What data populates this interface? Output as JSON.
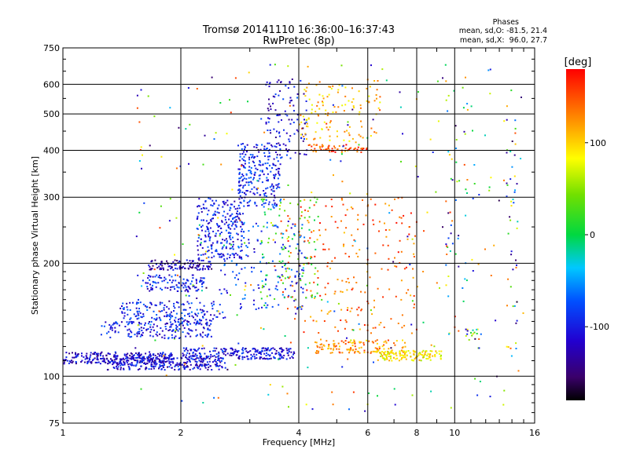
{
  "chart_data": {
    "type": "scatter",
    "title": "Tromsø 20141110 16:36:00–16:37:43",
    "subtitle": "RwPretec (8p)",
    "xlabel": "Frequency [MHz]",
    "ylabel": "Stationary phase Virtual Height [km]",
    "x_scale": "log",
    "y_scale": "log",
    "xlim": [
      1,
      16
    ],
    "ylim": [
      75,
      750
    ],
    "x_ticks": [
      1,
      2,
      4,
      6,
      8,
      10,
      16
    ],
    "x_tick_labels": [
      "1",
      "2",
      "4",
      "6",
      "8",
      "10",
      "16"
    ],
    "y_ticks": [
      75,
      100,
      200,
      300,
      400,
      500,
      600,
      750
    ],
    "y_tick_labels": [
      "75",
      "100",
      "200",
      "300",
      "400",
      "500",
      "600",
      "750"
    ],
    "grid": true,
    "stats": {
      "heading": "Phases",
      "line1": "mean, sd,O: -81.5, 21.4",
      "line2": "mean, sd,X:  96.0, 27.7"
    },
    "colorbar": {
      "label": "[deg]",
      "range": [
        -180,
        180
      ],
      "ticks": [
        100,
        0,
        -100
      ],
      "tick_labels": [
        "100",
        "0",
        "-100"
      ]
    },
    "series": [
      {
        "mode": "O",
        "color_value_center": -100,
        "clusters": [
          {
            "x": [
              1.0,
              1.9
            ],
            "y": [
              108,
              116
            ],
            "n": 260,
            "phase": -115
          },
          {
            "x": [
              1.3,
              2.6
            ],
            "y": [
              104,
              112
            ],
            "n": 260,
            "phase": -110
          },
          {
            "x": [
              2.0,
              3.9
            ],
            "y": [
              111,
              119
            ],
            "n": 240,
            "phase": -105
          },
          {
            "x": [
              1.25,
              2.4
            ],
            "y": [
              126,
              140
            ],
            "n": 180,
            "phase": -100
          },
          {
            "x": [
              1.4,
              2.6
            ],
            "y": [
              140,
              158
            ],
            "n": 160,
            "phase": -95
          },
          {
            "x": [
              1.6,
              2.3
            ],
            "y": [
              168,
              186
            ],
            "n": 110,
            "phase": -100
          },
          {
            "x": [
              1.65,
              2.4
            ],
            "y": [
              192,
              204
            ],
            "n": 110,
            "phase": -125
          },
          {
            "x": [
              2.2,
              2.9
            ],
            "y": [
              205,
              300
            ],
            "n": 230,
            "phase": -100
          },
          {
            "x": [
              2.8,
              3.6
            ],
            "y": [
              280,
              420
            ],
            "n": 240,
            "phase": -95
          },
          {
            "x": [
              3.3,
              4.2
            ],
            "y": [
              380,
              620
            ],
            "n": 110,
            "phase": -110
          },
          {
            "x": [
              2.5,
              4.2
            ],
            "y": [
              150,
              260
            ],
            "n": 160,
            "phase": -85
          }
        ]
      },
      {
        "mode": "X",
        "color_value_center": 96,
        "clusters": [
          {
            "x": [
              4.2,
              6.0
            ],
            "y": [
              395,
              415
            ],
            "n": 60,
            "phase": 150
          },
          {
            "x": [
              4.0,
              6.5
            ],
            "y": [
              420,
              620
            ],
            "n": 120,
            "phase": 110
          },
          {
            "x": [
              4.4,
              7.5
            ],
            "y": [
              115,
              125
            ],
            "n": 120,
            "phase": 125
          },
          {
            "x": [
              6.3,
              9.3
            ],
            "y": [
              110,
              117
            ],
            "n": 140,
            "phase": 90
          },
          {
            "x": [
              3.6,
              8.0
            ],
            "y": [
              130,
              300
            ],
            "n": 230,
            "phase": 140
          },
          {
            "x": [
              3.2,
              4.5
            ],
            "y": [
              160,
              300
            ],
            "n": 90,
            "phase": 20
          }
        ]
      },
      {
        "mode": "scattered",
        "clusters": [
          {
            "x": [
              1.5,
              15.0
            ],
            "y": [
              80,
              690
            ],
            "n": 320,
            "phase": 0
          },
          {
            "x": [
              9.5,
              10.8
            ],
            "y": [
              125,
              650
            ],
            "n": 45,
            "phase": 130
          },
          {
            "x": [
              13.5,
              14.5
            ],
            "y": [
              115,
              600
            ],
            "n": 40,
            "phase": -110
          },
          {
            "x": [
              10.5,
              11.8
            ],
            "y": [
              125,
              135
            ],
            "n": 15,
            "phase": 0
          }
        ]
      }
    ]
  }
}
